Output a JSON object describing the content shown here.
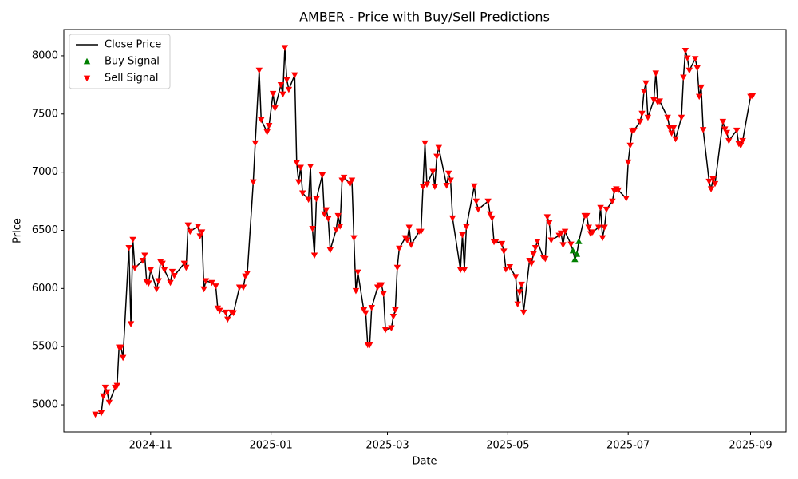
{
  "chart_data": {
    "type": "line",
    "title": "AMBER - Price with Buy/Sell Predictions",
    "x_label": "Date",
    "y_label": "Price",
    "legend": "upper left",
    "grid": false,
    "xlim": [
      "2024-09-18",
      "2025-09-19"
    ],
    "xticks": [
      {
        "value": "2024-11-01",
        "label": "2024-11"
      },
      {
        "value": "2025-01-01",
        "label": "2025-01"
      },
      {
        "value": "2025-03-01",
        "label": "2025-03"
      },
      {
        "value": "2025-05-01",
        "label": "2025-05"
      },
      {
        "value": "2025-07-01",
        "label": "2025-07"
      },
      {
        "value": "2025-09-01",
        "label": "2025-09"
      }
    ],
    "ylim": [
      4767,
      8226
    ],
    "yticks": [
      5000,
      5500,
      6000,
      6500,
      7000,
      7500,
      8000
    ],
    "x": [
      "2024-10-04",
      "2024-10-07",
      "2024-10-08",
      "2024-10-09",
      "2024-10-10",
      "2024-10-11",
      "2024-10-14",
      "2024-10-15",
      "2024-10-16",
      "2024-10-17",
      "2024-10-18",
      "2024-10-21",
      "2024-10-22",
      "2024-10-23",
      "2024-10-24",
      "2024-10-28",
      "2024-10-29",
      "2024-10-30",
      "2024-10-31",
      "2024-11-01",
      "2024-11-04",
      "2024-11-05",
      "2024-11-06",
      "2024-11-07",
      "2024-11-08",
      "2024-11-11",
      "2024-11-12",
      "2024-11-13",
      "2024-11-18",
      "2024-11-19",
      "2024-11-20",
      "2024-11-21",
      "2024-11-25",
      "2024-11-26",
      "2024-11-27",
      "2024-11-28",
      "2024-11-29",
      "2024-12-02",
      "2024-12-04",
      "2024-12-05",
      "2024-12-06",
      "2024-12-09",
      "2024-12-10",
      "2024-12-12",
      "2024-12-13",
      "2024-12-16",
      "2024-12-18",
      "2024-12-19",
      "2024-12-20",
      "2024-12-23",
      "2024-12-24",
      "2024-12-26",
      "2024-12-27",
      "2024-12-30",
      "2024-12-31",
      "2025-01-02",
      "2025-01-03",
      "2025-01-06",
      "2025-01-07",
      "2025-01-08",
      "2025-01-09",
      "2025-01-10",
      "2025-01-13",
      "2025-01-14",
      "2025-01-15",
      "2025-01-16",
      "2025-01-17",
      "2025-01-20",
      "2025-01-21",
      "2025-01-22",
      "2025-01-23",
      "2025-01-24",
      "2025-01-27",
      "2025-01-28",
      "2025-01-29",
      "2025-01-30",
      "2025-01-31",
      "2025-02-03",
      "2025-02-04",
      "2025-02-05",
      "2025-02-06",
      "2025-02-07",
      "2025-02-10",
      "2025-02-11",
      "2025-02-12",
      "2025-02-13",
      "2025-02-14",
      "2025-02-17",
      "2025-02-18",
      "2025-02-19",
      "2025-02-20",
      "2025-02-21",
      "2025-02-24",
      "2025-02-25",
      "2025-02-26",
      "2025-02-27",
      "2025-02-28",
      "2025-03-03",
      "2025-03-04",
      "2025-03-05",
      "2025-03-06",
      "2025-03-07",
      "2025-03-10",
      "2025-03-11",
      "2025-03-12",
      "2025-03-13",
      "2025-03-17",
      "2025-03-18",
      "2025-03-19",
      "2025-03-20",
      "2025-03-21",
      "2025-03-24",
      "2025-03-25",
      "2025-03-26",
      "2025-03-27",
      "2025-03-31",
      "2025-04-01",
      "2025-04-02",
      "2025-04-03",
      "2025-04-07",
      "2025-04-08",
      "2025-04-09",
      "2025-04-10",
      "2025-04-14",
      "2025-04-15",
      "2025-04-16",
      "2025-04-21",
      "2025-04-22",
      "2025-04-23",
      "2025-04-24",
      "2025-04-25",
      "2025-04-28",
      "2025-04-29",
      "2025-04-30",
      "2025-05-02",
      "2025-05-05",
      "2025-05-06",
      "2025-05-07",
      "2025-05-08",
      "2025-05-09",
      "2025-05-12",
      "2025-05-13",
      "2025-05-14",
      "2025-05-15",
      "2025-05-16",
      "2025-05-19",
      "2025-05-20",
      "2025-05-21",
      "2025-05-22",
      "2025-05-23",
      "2025-05-27",
      "2025-05-28",
      "2025-05-29",
      "2025-05-30",
      "2025-06-02",
      "2025-06-03",
      "2025-06-04",
      "2025-06-05",
      "2025-06-06",
      "2025-06-09",
      "2025-06-10",
      "2025-06-11",
      "2025-06-12",
      "2025-06-13",
      "2025-06-16",
      "2025-06-17",
      "2025-06-18",
      "2025-06-19",
      "2025-06-20",
      "2025-06-23",
      "2025-06-24",
      "2025-06-25",
      "2025-06-26",
      "2025-06-30",
      "2025-07-01",
      "2025-07-02",
      "2025-07-03",
      "2025-07-04",
      "2025-07-07",
      "2025-07-08",
      "2025-07-09",
      "2025-07-10",
      "2025-07-11",
      "2025-07-14",
      "2025-07-15",
      "2025-07-16",
      "2025-07-17",
      "2025-07-21",
      "2025-07-22",
      "2025-07-23",
      "2025-07-24",
      "2025-07-25",
      "2025-07-28",
      "2025-07-29",
      "2025-07-30",
      "2025-07-31",
      "2025-08-01",
      "2025-08-04",
      "2025-08-05",
      "2025-08-06",
      "2025-08-07",
      "2025-08-08",
      "2025-08-11",
      "2025-08-12",
      "2025-08-13",
      "2025-08-14",
      "2025-08-18",
      "2025-08-19",
      "2025-08-20",
      "2025-08-21",
      "2025-08-25",
      "2025-08-26",
      "2025-08-27",
      "2025-08-28",
      "2025-09-01",
      "2025-09-02"
    ],
    "series": [
      {
        "name": "Close Price",
        "color": "#000000",
        "marker": "none",
        "values": [
          4918,
          4930,
          5075,
          5150,
          5110,
          5020,
          5150,
          5165,
          5495,
          5495,
          5405,
          6350,
          5695,
          6420,
          6175,
          6240,
          6285,
          6055,
          6045,
          6160,
          5995,
          6065,
          6230,
          6215,
          6160,
          6050,
          6145,
          6110,
          6215,
          6180,
          6545,
          6490,
          6535,
          6450,
          6485,
          5995,
          6065,
          6050,
          6020,
          5830,
          5810,
          5795,
          5735,
          5795,
          5790,
          6010,
          6010,
          6105,
          6130,
          6915,
          7250,
          7875,
          7450,
          7345,
          7400,
          7675,
          7550,
          7750,
          7670,
          8070,
          7795,
          7710,
          7835,
          7080,
          6915,
          7040,
          6820,
          6765,
          7050,
          6515,
          6285,
          6770,
          6975,
          6640,
          6675,
          6600,
          6330,
          6505,
          6625,
          6535,
          6930,
          6955,
          6900,
          6930,
          6435,
          5980,
          6140,
          5815,
          5790,
          5515,
          5515,
          5835,
          6010,
          6030,
          6030,
          5955,
          5645,
          5660,
          5760,
          5815,
          6180,
          6345,
          6435,
          6415,
          6525,
          6375,
          6490,
          6490,
          6875,
          7250,
          6895,
          7005,
          6875,
          7135,
          7210,
          6885,
          6990,
          6930,
          6605,
          6160,
          6460,
          6160,
          6530,
          6880,
          6750,
          6680,
          6750,
          6640,
          6605,
          6400,
          6405,
          6385,
          6320,
          6165,
          6185,
          6100,
          5865,
          5970,
          6035,
          5795,
          6240,
          6215,
          6295,
          6350,
          6405,
          6265,
          6255,
          6615,
          6565,
          6415,
          6455,
          6475,
          6375,
          6490,
          6380,
          6325,
          6250,
          6295,
          6405,
          6625,
          6625,
          6525,
          6470,
          6485,
          6525,
          6695,
          6435,
          6525,
          6680,
          6750,
          6840,
          6855,
          6845,
          6775,
          7085,
          7230,
          7355,
          7360,
          7435,
          7505,
          7695,
          7765,
          7470,
          7620,
          7850,
          7600,
          7610,
          7470,
          7380,
          7335,
          7380,
          7285,
          7470,
          7815,
          8045,
          7980,
          7875,
          7975,
          7895,
          7650,
          7730,
          7365,
          6920,
          6855,
          6940,
          6900,
          7435,
          7370,
          7340,
          7270,
          7360,
          7245,
          7230,
          7270,
          7650,
          7655
        ]
      },
      {
        "name": "Buy Signal",
        "color": "#008000",
        "marker": "^",
        "x": [
          "2025-06-03",
          "2025-06-04",
          "2025-06-05",
          "2025-06-06"
        ],
        "values": [
          6325,
          6250,
          6295,
          6405
        ]
      },
      {
        "name": "Sell Signal",
        "color": "#ff0000",
        "marker": "v",
        "values": [
          4918,
          4930,
          5075,
          5150,
          5110,
          5020,
          5150,
          5165,
          5495,
          5495,
          5405,
          6350,
          5695,
          6420,
          6175,
          6240,
          6285,
          6055,
          6045,
          6160,
          5995,
          6065,
          6230,
          6215,
          6160,
          6050,
          6145,
          6110,
          6215,
          6180,
          6545,
          6490,
          6535,
          6450,
          6485,
          5995,
          6065,
          6050,
          6020,
          5830,
          5810,
          5795,
          5735,
          5795,
          5790,
          6010,
          6010,
          6105,
          6130,
          6915,
          7250,
          7875,
          7450,
          7345,
          7400,
          7675,
          7550,
          7750,
          7670,
          8070,
          7795,
          7710,
          7835,
          7080,
          6915,
          7040,
          6820,
          6765,
          7050,
          6515,
          6285,
          6770,
          6975,
          6640,
          6675,
          6600,
          6330,
          6505,
          6625,
          6535,
          6930,
          6955,
          6900,
          6930,
          6435,
          5980,
          6140,
          5815,
          5790,
          5515,
          5515,
          5835,
          6010,
          6030,
          6030,
          5955,
          5645,
          5660,
          5760,
          5815,
          6180,
          6345,
          6435,
          6415,
          6525,
          6375,
          6490,
          6490,
          6875,
          7250,
          6895,
          7005,
          6875,
          7135,
          7210,
          6885,
          6990,
          6930,
          6605,
          6160,
          6460,
          6160,
          6530,
          6880,
          6750,
          6680,
          6750,
          6640,
          6605,
          6400,
          6405,
          6385,
          6320,
          6165,
          6185,
          6100,
          5865,
          5970,
          6035,
          5795,
          6240,
          6215,
          6295,
          6350,
          6405,
          6265,
          6255,
          6615,
          6565,
          6415,
          6455,
          6475,
          6375,
          6490,
          6380,
          null,
          null,
          null,
          null,
          6625,
          6625,
          6525,
          6470,
          6485,
          6525,
          6695,
          6435,
          6525,
          6680,
          6750,
          6840,
          6855,
          6845,
          6775,
          7085,
          7230,
          7355,
          7360,
          7435,
          7505,
          7695,
          7765,
          7470,
          7620,
          7850,
          7600,
          7610,
          7470,
          7380,
          7335,
          7380,
          7285,
          7470,
          7815,
          8045,
          7980,
          7875,
          7975,
          7895,
          7650,
          7730,
          7365,
          6920,
          6855,
          6940,
          6900,
          7435,
          7370,
          7340,
          7270,
          7360,
          7245,
          7230,
          7270,
          7650,
          7655
        ]
      }
    ]
  }
}
